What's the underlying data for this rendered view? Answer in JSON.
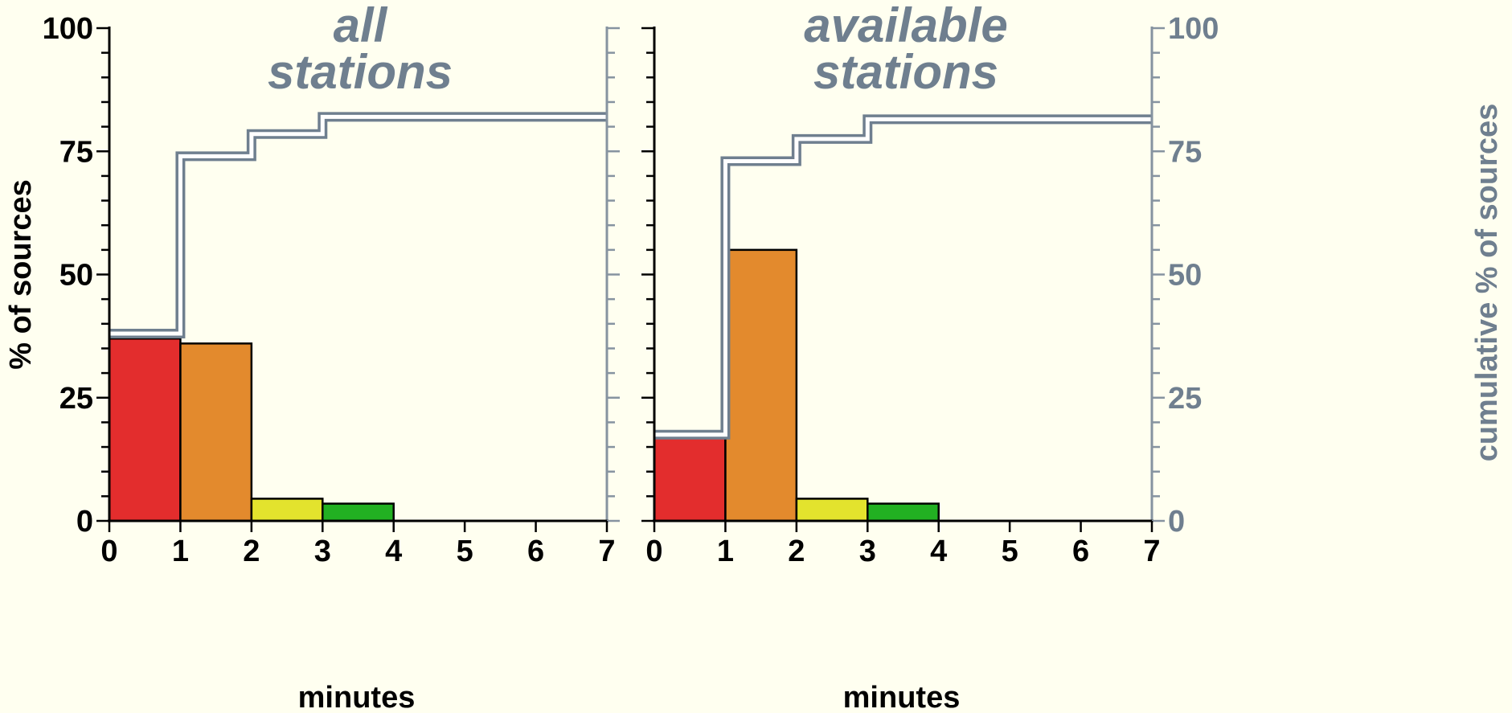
{
  "chart_data": [
    {
      "type": "bar",
      "title": [
        "all",
        "stations"
      ],
      "xlabel": "minutes",
      "ylabel": "% of sources",
      "y2label": "",
      "xlim": [
        0,
        7
      ],
      "ylim": [
        0,
        100
      ],
      "x_ticks": [
        0,
        1,
        2,
        3,
        4,
        5,
        6,
        7
      ],
      "y_ticks": [
        0,
        25,
        50,
        75,
        100
      ],
      "bins": [
        {
          "from": 0,
          "to": 1,
          "value": 37,
          "color": "#e32d2d"
        },
        {
          "from": 1,
          "to": 2,
          "value": 36,
          "color": "#e38a2d"
        },
        {
          "from": 2,
          "to": 3,
          "value": 4.5,
          "color": "#e3e32d"
        },
        {
          "from": 3,
          "to": 4,
          "value": 3.5,
          "color": "#22b022"
        }
      ],
      "cumulative": {
        "x": [
          0,
          1,
          2,
          3,
          7
        ],
        "y": [
          38,
          74,
          78.5,
          82,
          82
        ]
      }
    },
    {
      "type": "bar",
      "title": [
        "available",
        "stations"
      ],
      "xlabel": "minutes",
      "ylabel": "",
      "y2label": "cumulative % of sources",
      "xlim": [
        0,
        7
      ],
      "ylim": [
        0,
        100
      ],
      "x_ticks": [
        0,
        1,
        2,
        3,
        4,
        5,
        6,
        7
      ],
      "y_ticks": [
        0,
        25,
        50,
        75,
        100
      ],
      "bins": [
        {
          "from": 0,
          "to": 1,
          "value": 17,
          "color": "#e32d2d"
        },
        {
          "from": 1,
          "to": 2,
          "value": 55,
          "color": "#e38a2d"
        },
        {
          "from": 2,
          "to": 3,
          "value": 4.5,
          "color": "#e3e32d"
        },
        {
          "from": 3,
          "to": 4,
          "value": 3.5,
          "color": "#22b022"
        }
      ],
      "cumulative": {
        "x": [
          0,
          1,
          2,
          3,
          7
        ],
        "y": [
          17.5,
          73,
          77.5,
          81.5,
          81.5
        ]
      }
    }
  ]
}
